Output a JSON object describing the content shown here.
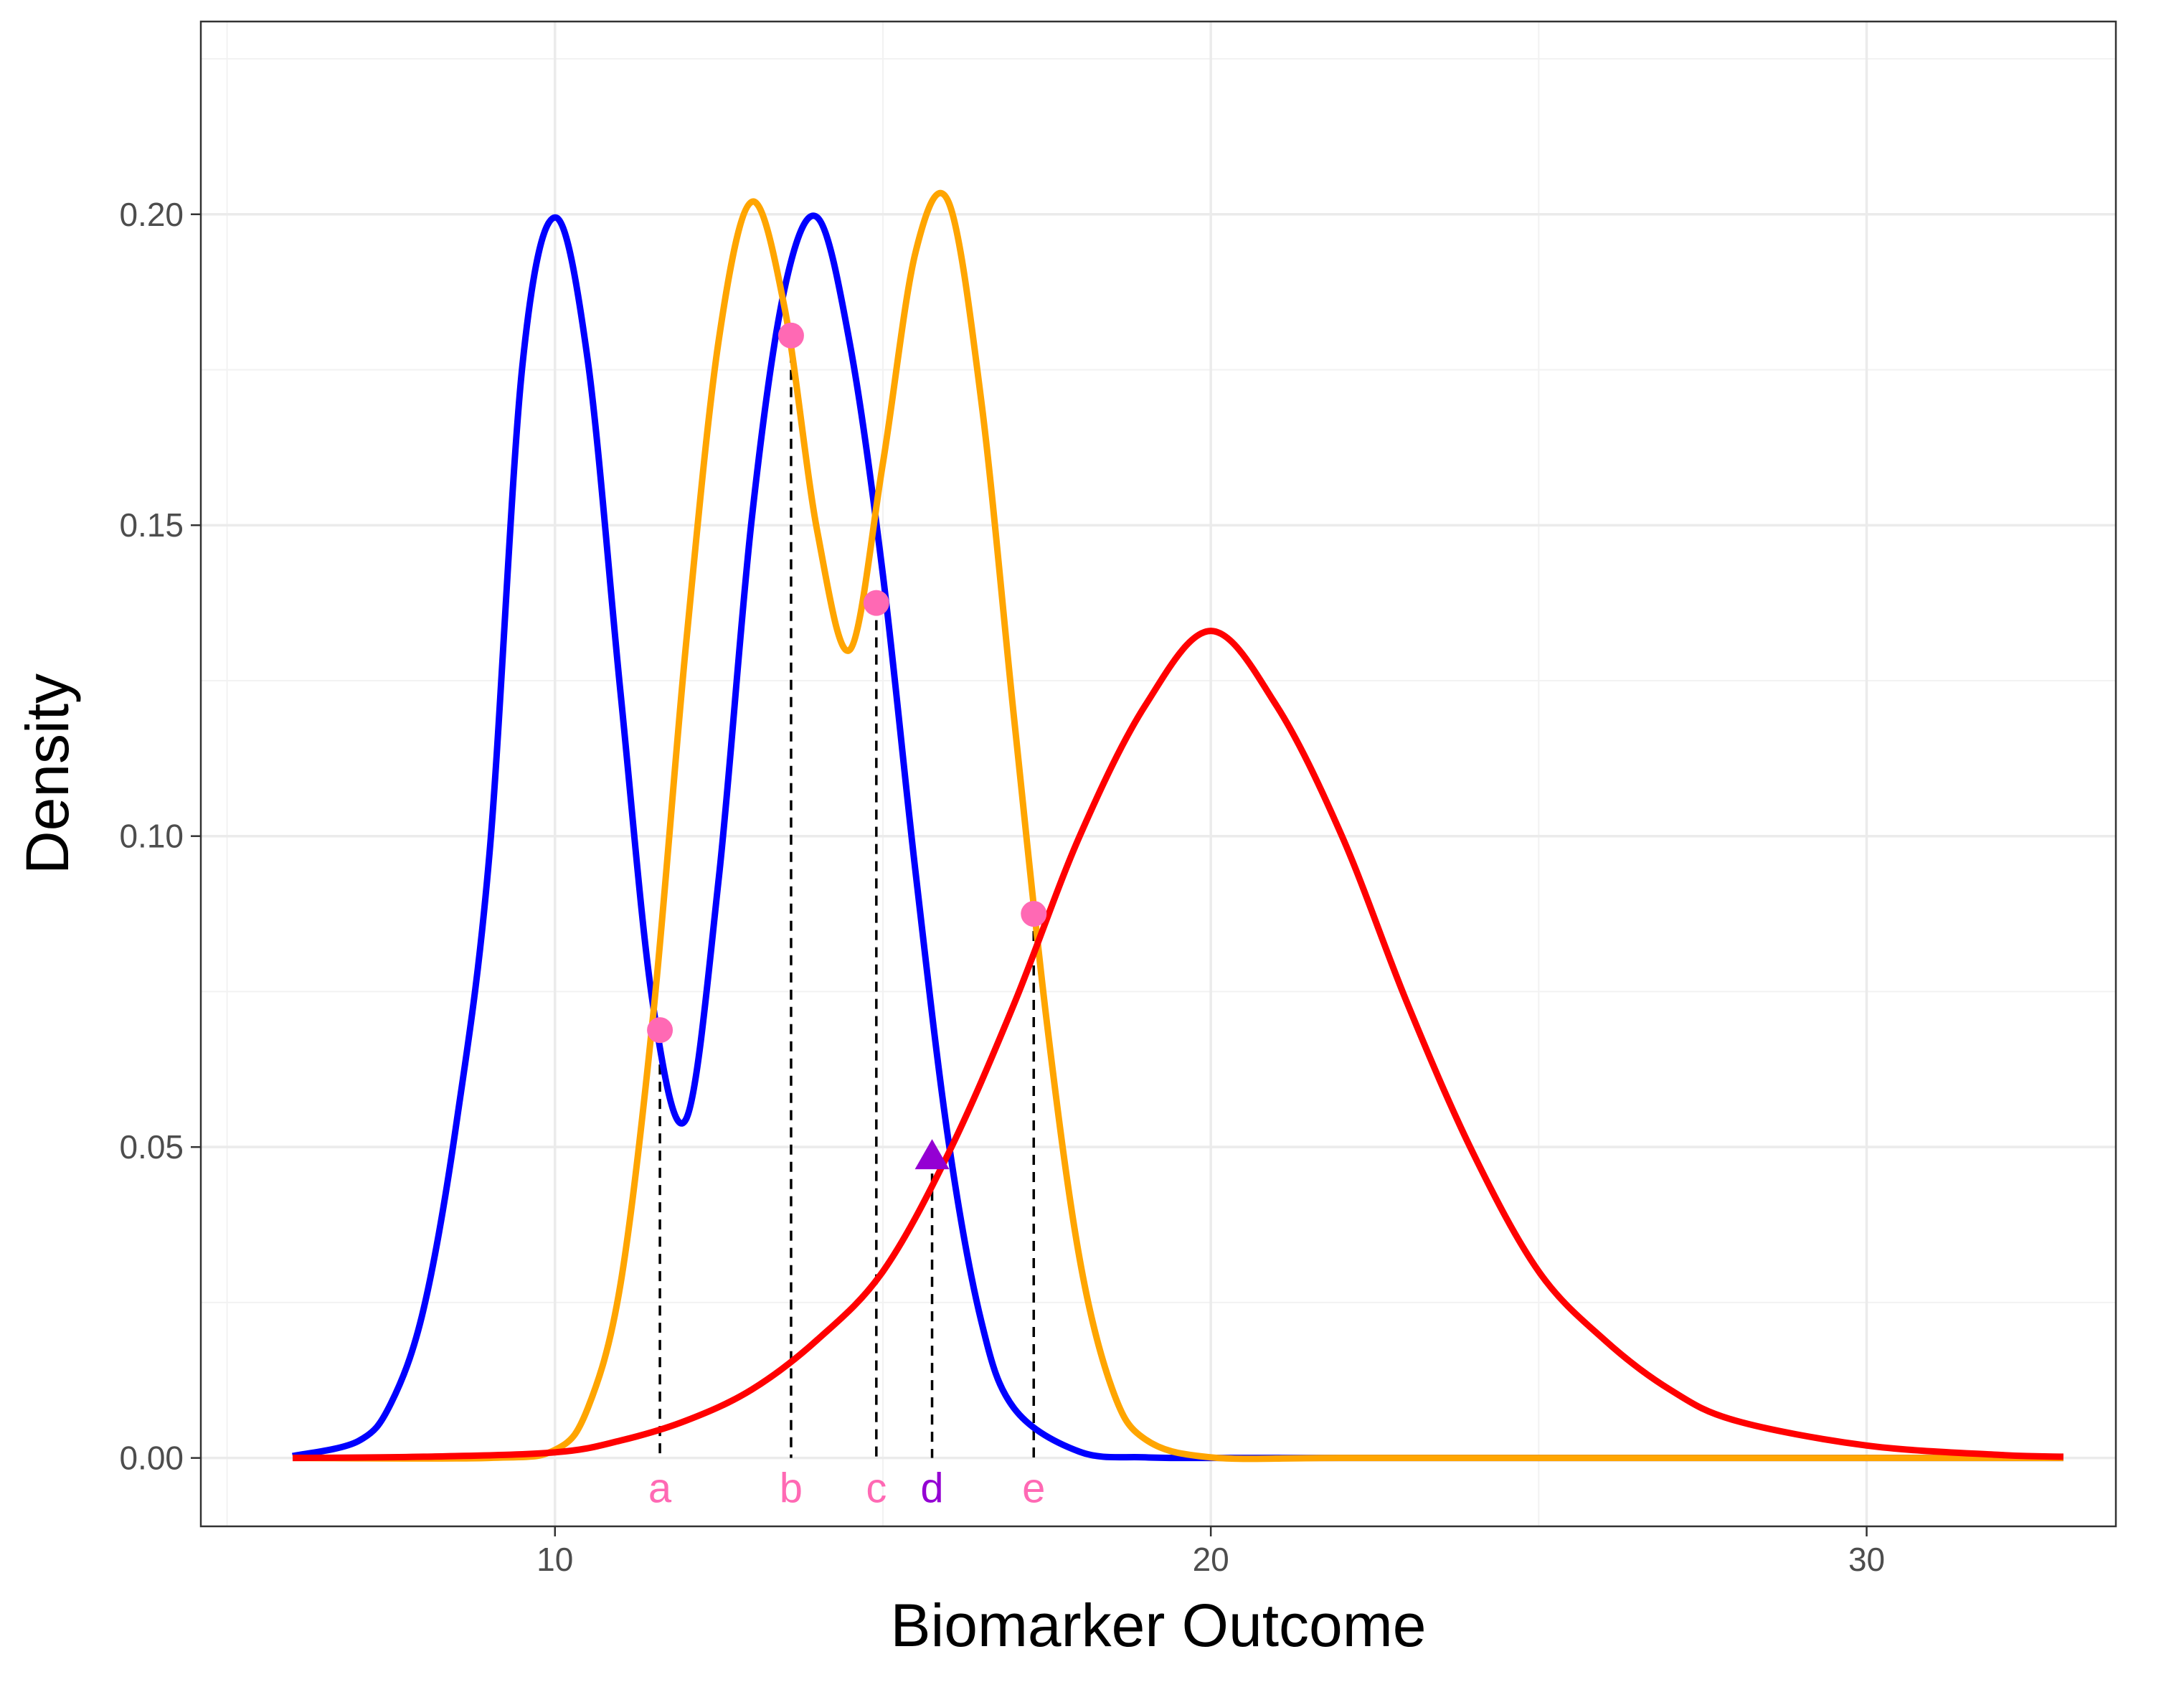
{
  "chart_data": {
    "type": "line",
    "title": "",
    "xlabel": "Biomarker Outcome",
    "ylabel": "Density",
    "xlim": [
      4.6,
      33.8
    ],
    "ylim": [
      -0.011,
      0.231
    ],
    "x_ticks": [
      10,
      20,
      30
    ],
    "x_tick_labels": [
      "10",
      "20",
      "30"
    ],
    "y_ticks": [
      0.0,
      0.05,
      0.1,
      0.15,
      0.2
    ],
    "y_tick_labels": [
      "0.00",
      "0.05",
      "0.10",
      "0.15",
      "0.20"
    ],
    "x_minor_ticks": [
      5,
      15,
      25
    ],
    "y_minor_ticks": [
      0.025,
      0.075,
      0.125,
      0.175,
      0.225
    ],
    "grid": true,
    "legend": "none",
    "series": [
      {
        "color": "#0000FF",
        "x": [
          6,
          7,
          7.5,
          8,
          8.5,
          9,
          9.5,
          10,
          10.5,
          11,
          11.5,
          12,
          12.5,
          13,
          13.5,
          14,
          14.5,
          15,
          15.5,
          16,
          16.5,
          17,
          18,
          19,
          20,
          22,
          26,
          30,
          33
        ],
        "y": [
          0.0003,
          0.0027,
          0.0088,
          0.0241,
          0.054,
          0.097,
          0.1753,
          0.1995,
          0.1765,
          0.123,
          0.0725,
          0.0545,
          0.0935,
          0.151,
          0.188,
          0.1995,
          0.179,
          0.142,
          0.094,
          0.051,
          0.022,
          0.008,
          0.001,
          0.0001,
          0.0,
          0.0,
          0.0,
          0.0,
          0.0
        ]
      },
      {
        "color": "#FFA500",
        "x": [
          6,
          9,
          10,
          10.5,
          11,
          11.5,
          12,
          12.5,
          13,
          13.5,
          14,
          14.5,
          15,
          15.5,
          16,
          16.5,
          17,
          17.5,
          18,
          18.5,
          19,
          20,
          22,
          26,
          30,
          33
        ],
        "y": [
          0.0,
          0.0,
          0.0013,
          0.008,
          0.028,
          0.0715,
          0.131,
          0.18,
          0.202,
          0.185,
          0.149,
          0.13,
          0.16,
          0.194,
          0.202,
          0.17,
          0.119,
          0.07,
          0.032,
          0.011,
          0.003,
          0.0001,
          0.0,
          0.0,
          0.0,
          0.0
        ]
      },
      {
        "color": "#FF0000",
        "x": [
          6,
          8,
          10,
          11,
          12,
          13,
          14,
          15,
          16,
          17,
          18,
          19,
          20,
          21,
          22,
          23,
          24,
          25,
          26,
          27,
          28,
          30,
          32,
          33
        ],
        "y": [
          0.0,
          0.0002,
          0.0009,
          0.0028,
          0.006,
          0.011,
          0.019,
          0.03,
          0.049,
          0.073,
          0.1,
          0.121,
          0.133,
          0.121,
          0.1,
          0.073,
          0.049,
          0.03,
          0.019,
          0.011,
          0.006,
          0.002,
          0.0005,
          0.0002
        ]
      }
    ],
    "markers": [
      {
        "label": "a",
        "x": 11.6,
        "y": 0.0688,
        "shape": "circle",
        "color": "#FF69B4"
      },
      {
        "label": "b",
        "x": 13.6,
        "y": 0.1805,
        "shape": "circle",
        "color": "#FF69B4"
      },
      {
        "label": "c",
        "x": 14.9,
        "y": 0.1375,
        "shape": "circle",
        "color": "#FF69B4"
      },
      {
        "label": "d",
        "x": 15.75,
        "y": 0.0485,
        "shape": "triangle",
        "color": "#9400D3"
      },
      {
        "label": "e",
        "x": 17.3,
        "y": 0.0875,
        "shape": "circle",
        "color": "#FF69B4"
      }
    ]
  }
}
